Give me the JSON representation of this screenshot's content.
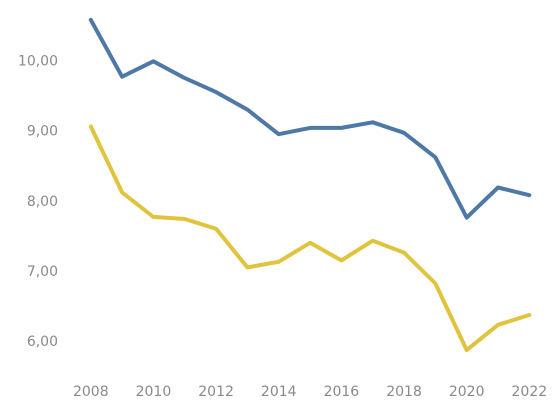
{
  "chart_data": {
    "type": "line",
    "title": "",
    "xlabel": "",
    "ylabel": "",
    "x": [
      2008,
      2009,
      2010,
      2011,
      2012,
      2013,
      2014,
      2015,
      2016,
      2017,
      2018,
      2019,
      2020,
      2021,
      2022
    ],
    "x_tick_labels": [
      "2008",
      "2010",
      "2012",
      "2014",
      "2016",
      "2018",
      "2020",
      "2022"
    ],
    "y_tick_labels": [
      "6,00",
      "7,00",
      "8,00",
      "9,00",
      "10,00"
    ],
    "y_ticks": [
      6,
      7,
      8,
      9,
      10
    ],
    "ylim": [
      5.7,
      10.75
    ],
    "xlim": [
      2007.4,
      2022.5
    ],
    "grid": false,
    "legend": "none",
    "series": [
      {
        "color": "#4e79a7",
        "values": [
          10.58,
          9.77,
          9.99,
          9.75,
          9.55,
          9.3,
          8.95,
          9.04,
          9.04,
          9.12,
          8.97,
          8.62,
          7.76,
          8.19,
          8.08
        ]
      },
      {
        "color": "#e0c43d",
        "values": [
          9.06,
          8.12,
          7.77,
          7.74,
          7.6,
          7.05,
          7.13,
          7.4,
          7.15,
          7.43,
          7.26,
          6.82,
          5.87,
          6.23,
          6.37
        ]
      }
    ]
  }
}
